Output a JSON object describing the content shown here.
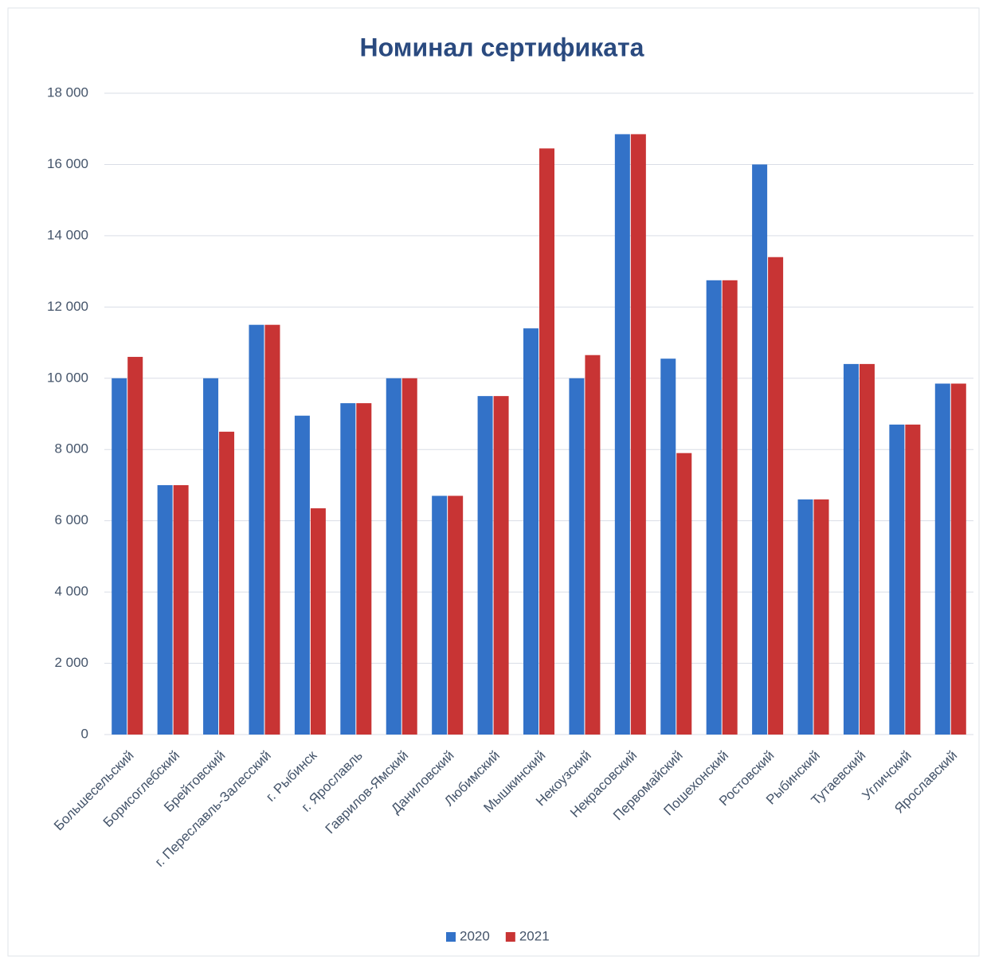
{
  "chart_data": {
    "type": "bar",
    "title": "Номинал сертификата",
    "categories": [
      "Большесельский",
      "Борисоглебский",
      "Брейтовский",
      "г. Переславль-Залесский",
      "г. Рыбинск",
      "г. Ярославль",
      "Гаврилов-Ямский",
      "Даниловский",
      "Любимский",
      "Мышкинский",
      "Некоузский",
      "Некрасовский",
      "Первомайский",
      "Пошехонский",
      "Ростовский",
      "Рыбинский",
      "Тутаевский",
      "Угличский",
      "Ярославский"
    ],
    "series": [
      {
        "name": "2020",
        "color": "#3372c8",
        "values": [
          10000,
          7000,
          10000,
          11500,
          8950,
          9300,
          10000,
          6700,
          9500,
          11400,
          10000,
          16850,
          10550,
          12750,
          16000,
          6600,
          10400,
          8700,
          9850
        ]
      },
      {
        "name": "2021",
        "color": "#c83434",
        "values": [
          10600,
          7000,
          8500,
          11500,
          6350,
          9300,
          10000,
          6700,
          9500,
          16450,
          10650,
          16850,
          7900,
          12750,
          13400,
          6600,
          10400,
          8700,
          9850
        ]
      }
    ],
    "ylim": [
      0,
      18000
    ],
    "yticks": [
      0,
      {
        "value": 2000,
        "label": "2 000"
      },
      {
        "value": 4000,
        "label": "4 000"
      },
      {
        "value": 6000,
        "label": "6 000"
      },
      {
        "value": 8000,
        "label": "8 000"
      },
      {
        "value": 10000,
        "label": "10 000"
      },
      {
        "value": 12000,
        "label": "12 000"
      },
      {
        "value": 14000,
        "label": "14 000"
      },
      {
        "value": 16000,
        "label": "16 000"
      },
      {
        "value": 18000,
        "label": "18 000"
      }
    ],
    "grid": true,
    "legend": "bottom"
  }
}
